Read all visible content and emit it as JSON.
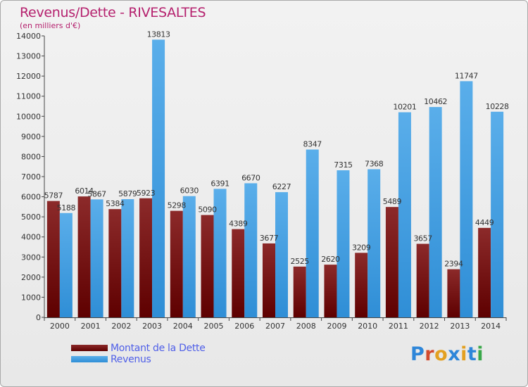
{
  "header": {
    "title": "Revenus/Dette - RIVESALTES",
    "subtitle": "(en milliers d'€)"
  },
  "legend": {
    "items": [
      {
        "label": "Montant de la Dette",
        "color": "#7a1010"
      },
      {
        "label": "Revenus",
        "color": "#4aa3e8"
      }
    ]
  },
  "logo": {
    "text": "Proxiti",
    "letter_colors": [
      "#2e86d9",
      "#d24a2e",
      "#e3a021",
      "#2e86d9",
      "#e3a021",
      "#2e86d9",
      "#3aa84a"
    ]
  },
  "chart_data": {
    "type": "bar",
    "title": "Revenus/Dette - RIVESALTES",
    "subtitle": "(en milliers d'€)",
    "categories": [
      "2000",
      "2001",
      "2002",
      "2003",
      "2004",
      "2005",
      "2006",
      "2007",
      "2008",
      "2009",
      "2010",
      "2011",
      "2012",
      "2013",
      "2014"
    ],
    "series": [
      {
        "name": "Montant de la Dette",
        "color": "#7a1010",
        "values": [
          5787,
          6014,
          5384,
          5923,
          5298,
          5090,
          4389,
          3677,
          2525,
          2620,
          3209,
          5489,
          3657,
          2394,
          4449
        ],
        "labels": [
          "5787",
          "6014",
          "5384",
          "5923",
          "5298",
          "5090",
          "4389",
          "3677",
          "2525",
          "2620",
          "3209",
          "5489",
          "3657",
          "2394",
          "4449"
        ]
      },
      {
        "name": "Revenus",
        "color": "#4aa3e8",
        "values": [
          5188,
          5867,
          5879,
          13813,
          6030,
          6391,
          6670,
          6227,
          8347,
          7315,
          7368,
          10201,
          10462,
          11747,
          10228
        ],
        "labels": [
          "5188",
          "5867",
          "5879",
          "13813",
          "6030",
          "6391",
          "6670",
          "6227",
          "8347",
          "7315",
          "7368",
          "10201",
          "10462",
          "11747",
          "10228"
        ]
      }
    ],
    "ylim": [
      0,
      14000
    ],
    "yticks": [
      0,
      1000,
      2000,
      3000,
      4000,
      5000,
      6000,
      7000,
      8000,
      9000,
      10000,
      11000,
      12000,
      13000,
      14000
    ],
    "grid": false,
    "legend_position": "bottom-left"
  }
}
